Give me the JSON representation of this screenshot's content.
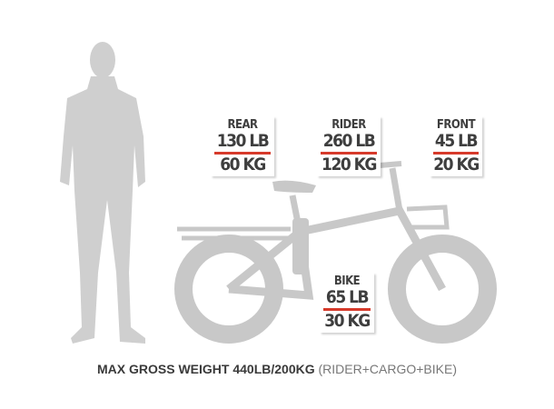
{
  "labels": {
    "rear": {
      "title": "REAR",
      "lb": "130 LB",
      "kg": "60 KG"
    },
    "rider": {
      "title": "RIDER",
      "lb": "260 LB",
      "kg": "120 KG"
    },
    "front": {
      "title": "FRONT",
      "lb": "45 LB",
      "kg": "20 KG"
    },
    "bike": {
      "title": "BIKE",
      "lb": "65 LB",
      "kg": "30 KG"
    }
  },
  "caption": {
    "main": "MAX GROSS WEIGHT 440LB/200KG",
    "note": "(RIDER+CARGO+BIKE)"
  },
  "colors": {
    "accent": "#d63a2b",
    "silhouette": "#c9c9c9",
    "text": "#3e3e3e"
  }
}
